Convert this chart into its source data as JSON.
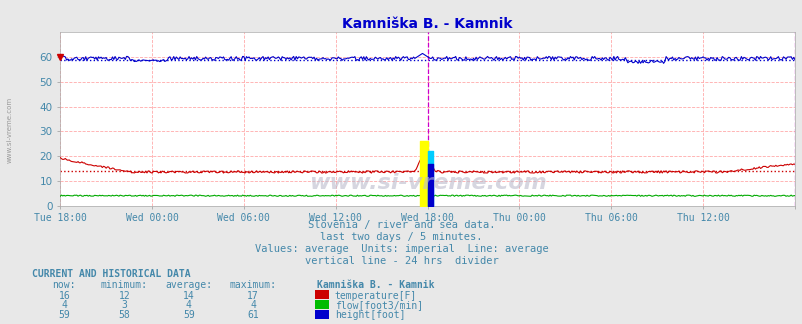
{
  "title": "Kamniška B. - Kamnik",
  "title_color": "#0000cc",
  "bg_color": "#e8e8e8",
  "plot_bg_color": "#ffffff",
  "grid_color": "#ffcccc",
  "tick_color": "#4488aa",
  "subtitle_color": "#4488aa",
  "xlim": [
    0,
    576
  ],
  "ylim": [
    0,
    70
  ],
  "yticks": [
    0,
    10,
    20,
    30,
    40,
    50,
    60
  ],
  "xtick_labels": [
    "Tue 18:00",
    "Wed 00:00",
    "Wed 06:00",
    "Wed 12:00",
    "Wed 18:00",
    "Thu 00:00",
    "Thu 06:00",
    "Thu 12:00",
    ""
  ],
  "xtick_positions": [
    0,
    72,
    144,
    216,
    288,
    360,
    432,
    504,
    576
  ],
  "watermark": "www.si-vreme.com",
  "subtitle1": "Slovenia / river and sea data.",
  "subtitle2": "last two days / 5 minutes.",
  "subtitle3": "Values: average  Units: imperial  Line: average",
  "subtitle4": "vertical line - 24 hrs  divider",
  "current_label": "CURRENT AND HISTORICAL DATA",
  "table_headers": [
    "now:",
    "minimum:",
    "average:",
    "maximum:",
    "Kamniška B. - Kamnik"
  ],
  "rows": [
    {
      "now": "16",
      "min": "12",
      "avg": "14",
      "max": "17",
      "label": "temperature[F]",
      "color": "#cc0000"
    },
    {
      "now": "4",
      "min": "3",
      "avg": "4",
      "max": "4",
      "label": "flow[foot3/min]",
      "color": "#00bb00"
    },
    {
      "now": "59",
      "min": "58",
      "avg": "59",
      "max": "61",
      "label": "height[foot]",
      "color": "#0000cc"
    }
  ],
  "temp_avg": 14,
  "height_avg": 59,
  "divider_x": 288
}
